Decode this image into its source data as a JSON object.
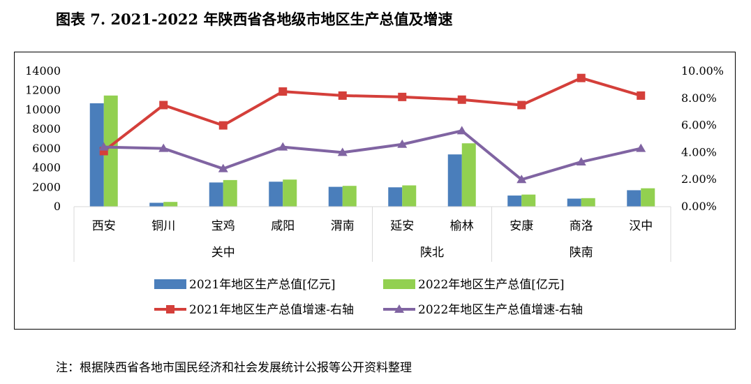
{
  "title": "图表 7. 2021-2022 年陕西省各地级市地区生产总值及增速",
  "note": "注：根据陕西省各地市国民经济和社会发展统计公报等公开资料整理",
  "colors": {
    "bar2021": "#4a7ebb",
    "bar2022": "#92d050",
    "line2021": "#d43f3a",
    "line2022": "#8064a2"
  },
  "chart_data": {
    "type": "bar",
    "categories": [
      "西安",
      "铜川",
      "宝鸡",
      "咸阳",
      "渭南",
      "延安",
      "榆林",
      "安康",
      "商洛",
      "汉中"
    ],
    "groups": [
      {
        "label": "关中",
        "count": 5
      },
      {
        "label": "陕北",
        "count": 2
      },
      {
        "label": "陕南",
        "count": 3
      }
    ],
    "series": [
      {
        "name": "2021年地区生产总值[亿元]",
        "type": "bar",
        "axis": "left",
        "values": [
          10688,
          400,
          2500,
          2580,
          2050,
          2000,
          5400,
          1150,
          830,
          1700
        ]
      },
      {
        "name": "2022年地区生产总值[亿元]",
        "type": "bar",
        "axis": "left",
        "values": [
          11487,
          490,
          2750,
          2800,
          2150,
          2200,
          6550,
          1250,
          880,
          1900
        ]
      },
      {
        "name": "2021年地区生产总值增速-右轴",
        "type": "line",
        "axis": "right",
        "values": [
          4.1,
          7.5,
          6.0,
          8.5,
          8.2,
          8.1,
          7.9,
          7.5,
          9.5,
          8.2
        ]
      },
      {
        "name": "2022年地区生产总值增速-右轴",
        "type": "line",
        "axis": "right",
        "values": [
          4.4,
          4.3,
          2.8,
          4.4,
          4.0,
          4.6,
          5.6,
          2.0,
          3.3,
          4.3
        ]
      }
    ],
    "left_axis": {
      "min": 0,
      "max": 14000,
      "ticks": [
        "0",
        "2000",
        "4000",
        "6000",
        "8000",
        "10000",
        "12000",
        "14000"
      ]
    },
    "right_axis": {
      "min": 0,
      "max": 10,
      "ticks": [
        "0.00%",
        "2.00%",
        "4.00%",
        "6.00%",
        "8.00%",
        "10.00%"
      ]
    },
    "legend_position": "bottom"
  }
}
